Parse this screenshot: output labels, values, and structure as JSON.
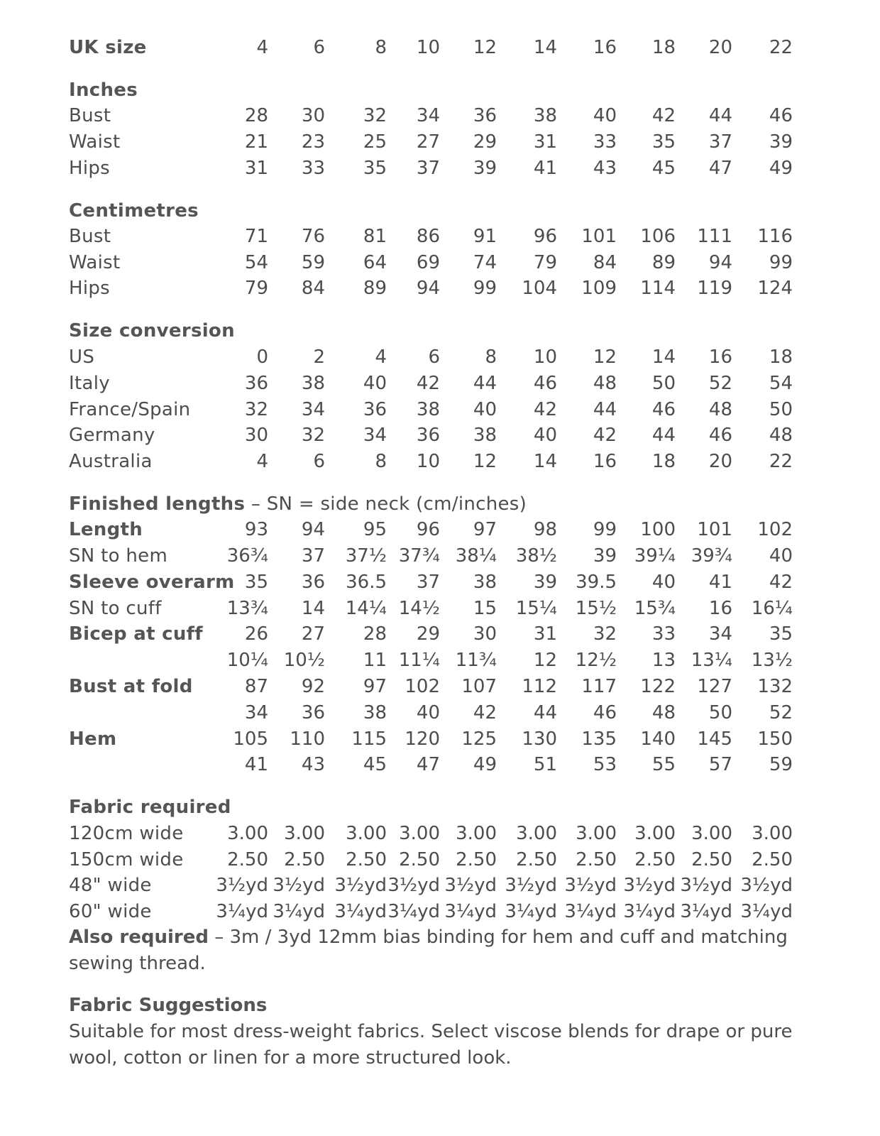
{
  "rows": [
    {
      "label": "UK size",
      "bold": true,
      "values": [
        "4",
        "6",
        "8",
        "10",
        "12",
        "14",
        "16",
        "18",
        "20",
        "22"
      ]
    },
    {
      "label": "Inches",
      "bold": true,
      "heading": true
    },
    {
      "label": "Bust",
      "values": [
        "28",
        "30",
        "32",
        "34",
        "36",
        "38",
        "40",
        "42",
        "44",
        "46"
      ]
    },
    {
      "label": "Waist",
      "values": [
        "21",
        "23",
        "25",
        "27",
        "29",
        "31",
        "33",
        "35",
        "37",
        "39"
      ]
    },
    {
      "label": "Hips",
      "values": [
        "31",
        "33",
        "35",
        "37",
        "39",
        "41",
        "43",
        "45",
        "47",
        "49"
      ]
    },
    {
      "label": "Centimetres",
      "bold": true,
      "heading": true
    },
    {
      "label": "Bust",
      "values": [
        "71",
        "76",
        "81",
        "86",
        "91",
        "96",
        "101",
        "106",
        "111",
        "116"
      ]
    },
    {
      "label": "Waist",
      "values": [
        "54",
        "59",
        "64",
        "69",
        "74",
        "79",
        "84",
        "89",
        "94",
        "99"
      ]
    },
    {
      "label": "Hips",
      "values": [
        "79",
        "84",
        "89",
        "94",
        "99",
        "104",
        "109",
        "114",
        "119",
        "124"
      ]
    },
    {
      "label": "Size conversion",
      "bold": true,
      "heading": true
    },
    {
      "label": "US",
      "values": [
        "0",
        "2",
        "4",
        "6",
        "8",
        "10",
        "12",
        "14",
        "16",
        "18"
      ]
    },
    {
      "label": "Italy",
      "values": [
        "36",
        "38",
        "40",
        "42",
        "44",
        "46",
        "48",
        "50",
        "52",
        "54"
      ]
    },
    {
      "label": "France/Spain",
      "values": [
        "32",
        "34",
        "36",
        "38",
        "40",
        "42",
        "44",
        "46",
        "48",
        "50"
      ]
    },
    {
      "label": "Germany",
      "values": [
        "30",
        "32",
        "34",
        "36",
        "38",
        "40",
        "42",
        "44",
        "46",
        "48"
      ]
    },
    {
      "label": "Australia",
      "values": [
        "4",
        "6",
        "8",
        "10",
        "12",
        "14",
        "16",
        "18",
        "20",
        "22"
      ]
    },
    {
      "label": "Finished lengths",
      "suffix": " – SN = side neck (cm/inches)",
      "bold": true,
      "heading": true
    },
    {
      "label": "Length",
      "bold": true,
      "values": [
        "93",
        "94",
        "95",
        "96",
        "97",
        "98",
        "99",
        "100",
        "101",
        "102"
      ]
    },
    {
      "label": "SN to hem",
      "values": [
        "36¾",
        "37",
        "37½",
        "37¾",
        "38¼",
        "38½",
        "39",
        "39¼",
        "39¾",
        "40"
      ]
    },
    {
      "label": "Sleeve overarm",
      "bold": true,
      "values": [
        "35",
        "36",
        "36.5",
        "37",
        "38",
        "39",
        "39.5",
        "40",
        "41",
        "42"
      ]
    },
    {
      "label": "SN to cuff",
      "values": [
        "13¾",
        "14",
        "14¼",
        "14½",
        "15",
        "15¼",
        "15½",
        "15¾",
        "16",
        "16¼"
      ]
    },
    {
      "label": "Bicep at cuff",
      "bold": true,
      "values": [
        "26",
        "27",
        "28",
        "29",
        "30",
        "31",
        "32",
        "33",
        "34",
        "35"
      ]
    },
    {
      "label": "",
      "values": [
        "10¼",
        "10½",
        "11",
        "11¼",
        "11¾",
        "12",
        "12½",
        "13",
        "13¼",
        "13½"
      ]
    },
    {
      "label": "Bust at fold",
      "bold": true,
      "values": [
        "87",
        "92",
        "97",
        "102",
        "107",
        "112",
        "117",
        "122",
        "127",
        "132"
      ]
    },
    {
      "label": "",
      "values": [
        "34",
        "36",
        "38",
        "40",
        "42",
        "44",
        "46",
        "48",
        "50",
        "52"
      ]
    },
    {
      "label": "Hem",
      "bold": true,
      "values": [
        "105",
        "110",
        "115",
        "120",
        "125",
        "130",
        "135",
        "140",
        "145",
        "150"
      ]
    },
    {
      "label": "",
      "values": [
        "41",
        "43",
        "45",
        "47",
        "49",
        "51",
        "53",
        "55",
        "57",
        "59"
      ]
    },
    {
      "label": "Fabric required",
      "bold": true,
      "heading": true
    },
    {
      "label": "120cm wide",
      "values": [
        "3.00",
        "3.00",
        "3.00",
        "3.00",
        "3.00",
        "3.00",
        "3.00",
        "3.00",
        "3.00",
        "3.00"
      ]
    },
    {
      "label": "150cm wide",
      "values": [
        "2.50",
        "2.50",
        "2.50",
        "2.50",
        "2.50",
        "2.50",
        "2.50",
        "2.50",
        "2.50",
        "2.50"
      ]
    },
    {
      "label": "48\" wide",
      "values": [
        "3½yd",
        "3½yd",
        "3½yd",
        "3½yd",
        "3½yd",
        "3½yd",
        "3½yd",
        "3½yd",
        "3½yd",
        "3½yd"
      ]
    },
    {
      "label": "60\" wide",
      "values": [
        "3¼yd",
        "3¼yd",
        "3¼yd",
        "3¼yd",
        "3¼yd",
        "3¼yd",
        "3¼yd",
        "3¼yd",
        "3¼yd",
        "3¼yd"
      ]
    }
  ],
  "also_required": {
    "label": "Also required",
    "text": " – 3m / 3yd 12mm bias binding for hem and cuff and matching sewing thread."
  },
  "fabric_suggestions": {
    "title": "Fabric Suggestions",
    "text": "Suitable for most dress-weight fabrics. Select viscose blends for drape or pure wool, cotton or linen for a more structured look."
  }
}
